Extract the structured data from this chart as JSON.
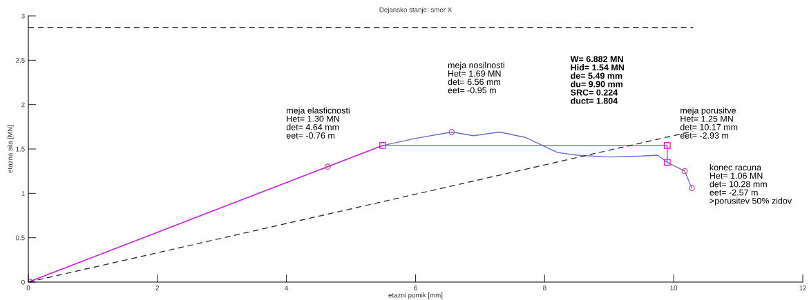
{
  "chart_data": {
    "type": "line",
    "title": "Dejansko stanje: smer X",
    "xlabel": "etazni pomik [mm]",
    "ylabel": "etazna sila [MN]",
    "xlim": [
      0,
      12
    ],
    "ylim": [
      0,
      3
    ],
    "xticks": [
      0,
      2,
      4,
      6,
      8,
      10,
      12
    ],
    "yticks": [
      0,
      0.5,
      1,
      1.5,
      2,
      2.5,
      3
    ],
    "grid": false,
    "legend": false,
    "series": [
      {
        "color": "#6b6bcf",
        "marker": "none",
        "line_style": "solid",
        "x": [
          0,
          4.64,
          5.5,
          6.0,
          6.56,
          6.9,
          7.3,
          7.7,
          8.2,
          8.5,
          9.0,
          9.5,
          9.75,
          9.9,
          10.17,
          10.28
        ],
        "values": [
          0,
          1.3,
          1.54,
          1.62,
          1.69,
          1.65,
          1.69,
          1.63,
          1.46,
          1.43,
          1.41,
          1.42,
          1.43,
          1.35,
          1.25,
          1.06
        ]
      },
      {
        "color": "#e020e0",
        "marker": "square",
        "line_style": "solid",
        "x": [
          0,
          5.49,
          9.9,
          9.9
        ],
        "values": [
          0,
          1.54,
          1.54,
          1.35
        ]
      },
      {
        "type": "scatter",
        "color": "#cc5588",
        "marker": "circle",
        "x": [
          4.64,
          6.56,
          10.17,
          10.28
        ],
        "values": [
          1.3,
          1.69,
          1.25,
          1.06
        ]
      },
      {
        "color": "#333333",
        "marker": "none",
        "line_style": "dashed",
        "x": [
          0,
          10.3
        ],
        "values": [
          2.87,
          2.87
        ]
      },
      {
        "color": "#333333",
        "marker": "none",
        "line_style": "dashed",
        "x": [
          0,
          10.3
        ],
        "values": [
          0,
          1.7
        ]
      }
    ],
    "annotations": [
      "meja elasticnosti\nHet= 1.30 MN\ndet= 4.64 mm\neet= -0.76 m",
      "meja nosilnosti\nHet= 1.69 MN\ndet= 6.56 mm\neet= -0.95 m",
      "W= 6.882 MN\nHid= 1.54 MN\nde= 5.49 mm\ndu= 9.90 mm\nSRC= 0.224\nduct= 1.804",
      "meja porusitve\nHet= 1.25 MN\ndet= 10.17 mm\neet= -2.93 m",
      "konec racuna\nHet= 1.06 MN\ndet= 10.28 mm\neet= -2.57 m\n>porusitev 50% zidov"
    ]
  }
}
